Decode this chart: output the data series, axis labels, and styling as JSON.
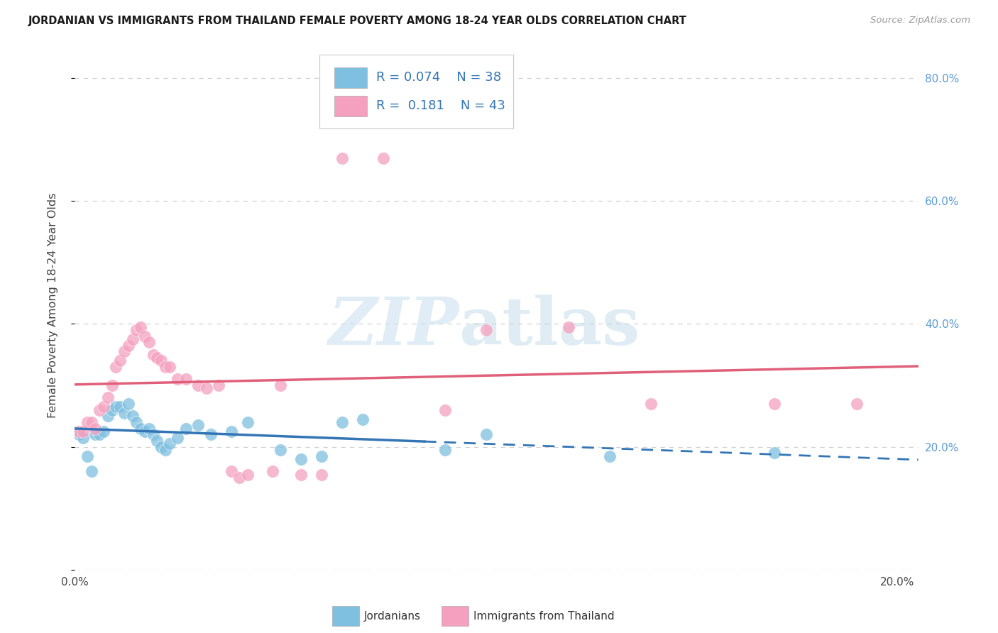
{
  "title": "JORDANIAN VS IMMIGRANTS FROM THAILAND FEMALE POVERTY AMONG 18-24 YEAR OLDS CORRELATION CHART",
  "source": "Source: ZipAtlas.com",
  "ylabel": "Female Poverty Among 18-24 Year Olds",
  "legend_label1": "Jordanians",
  "legend_label2": "Immigrants from Thailand",
  "r1": 0.074,
  "n1": 38,
  "r2": 0.181,
  "n2": 43,
  "blue_color": "#7fbfdf",
  "pink_color": "#f4a0be",
  "blue_line_color": "#3375b5",
  "pink_line_color": "#e0607a",
  "blue_scatter": [
    [
      0.001,
      0.22
    ],
    [
      0.002,
      0.215
    ],
    [
      0.003,
      0.185
    ],
    [
      0.004,
      0.16
    ],
    [
      0.005,
      0.22
    ],
    [
      0.006,
      0.22
    ],
    [
      0.007,
      0.225
    ],
    [
      0.008,
      0.25
    ],
    [
      0.009,
      0.26
    ],
    [
      0.01,
      0.265
    ],
    [
      0.011,
      0.265
    ],
    [
      0.012,
      0.255
    ],
    [
      0.013,
      0.27
    ],
    [
      0.014,
      0.25
    ],
    [
      0.015,
      0.24
    ],
    [
      0.016,
      0.23
    ],
    [
      0.017,
      0.225
    ],
    [
      0.018,
      0.23
    ],
    [
      0.019,
      0.22
    ],
    [
      0.02,
      0.21
    ],
    [
      0.021,
      0.2
    ],
    [
      0.022,
      0.195
    ],
    [
      0.023,
      0.205
    ],
    [
      0.025,
      0.215
    ],
    [
      0.027,
      0.23
    ],
    [
      0.03,
      0.235
    ],
    [
      0.033,
      0.22
    ],
    [
      0.038,
      0.225
    ],
    [
      0.042,
      0.24
    ],
    [
      0.05,
      0.195
    ],
    [
      0.055,
      0.18
    ],
    [
      0.06,
      0.185
    ],
    [
      0.065,
      0.24
    ],
    [
      0.07,
      0.245
    ],
    [
      0.09,
      0.195
    ],
    [
      0.1,
      0.22
    ],
    [
      0.13,
      0.185
    ],
    [
      0.17,
      0.19
    ]
  ],
  "pink_scatter": [
    [
      0.001,
      0.225
    ],
    [
      0.002,
      0.225
    ],
    [
      0.003,
      0.24
    ],
    [
      0.004,
      0.24
    ],
    [
      0.005,
      0.23
    ],
    [
      0.006,
      0.26
    ],
    [
      0.007,
      0.265
    ],
    [
      0.008,
      0.28
    ],
    [
      0.009,
      0.3
    ],
    [
      0.01,
      0.33
    ],
    [
      0.011,
      0.34
    ],
    [
      0.012,
      0.355
    ],
    [
      0.013,
      0.365
    ],
    [
      0.014,
      0.375
    ],
    [
      0.015,
      0.39
    ],
    [
      0.016,
      0.395
    ],
    [
      0.017,
      0.38
    ],
    [
      0.018,
      0.37
    ],
    [
      0.019,
      0.35
    ],
    [
      0.02,
      0.345
    ],
    [
      0.021,
      0.34
    ],
    [
      0.022,
      0.33
    ],
    [
      0.023,
      0.33
    ],
    [
      0.025,
      0.31
    ],
    [
      0.027,
      0.31
    ],
    [
      0.03,
      0.3
    ],
    [
      0.032,
      0.295
    ],
    [
      0.035,
      0.3
    ],
    [
      0.038,
      0.16
    ],
    [
      0.04,
      0.15
    ],
    [
      0.042,
      0.155
    ],
    [
      0.048,
      0.16
    ],
    [
      0.05,
      0.3
    ],
    [
      0.055,
      0.155
    ],
    [
      0.06,
      0.155
    ],
    [
      0.065,
      0.67
    ],
    [
      0.075,
      0.67
    ],
    [
      0.09,
      0.26
    ],
    [
      0.1,
      0.39
    ],
    [
      0.12,
      0.395
    ],
    [
      0.14,
      0.27
    ],
    [
      0.17,
      0.27
    ],
    [
      0.19,
      0.27
    ]
  ],
  "xmin": 0.0,
  "xmax": 0.205,
  "ymin": 0.0,
  "ymax": 0.86,
  "yticks_right": [
    0.0,
    0.2,
    0.4,
    0.6,
    0.8
  ],
  "ytick_labels_right": [
    "",
    "20.0%",
    "40.0%",
    "60.0%",
    "80.0%"
  ],
  "xticks": [
    0.0,
    0.05,
    0.1,
    0.15,
    0.2
  ],
  "xtick_labels": [
    "0.0%",
    "",
    "",
    "",
    "20.0%"
  ],
  "grid_color": "#d0d0d0",
  "background_color": "#ffffff",
  "blue_line_solid_end": 0.085,
  "pink_line_solid_end": 0.205
}
